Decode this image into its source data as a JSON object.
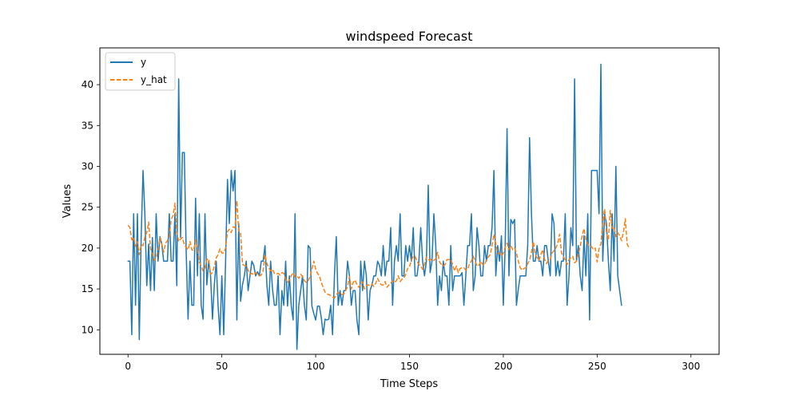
{
  "chart_data": {
    "type": "line",
    "title": "windspeed Forecast",
    "xlabel": "Time Steps",
    "ylabel": "Values",
    "xlim": [
      -15,
      315
    ],
    "ylim": [
      7.0,
      44.5
    ],
    "xticks": [
      0,
      50,
      100,
      150,
      200,
      250,
      300
    ],
    "yticks": [
      10,
      15,
      20,
      25,
      30,
      35,
      40
    ],
    "legend_position": "top-left",
    "grid": false,
    "series": [
      {
        "name": "y",
        "color": "#1f77b4",
        "style": "solid",
        "x_start": 0,
        "x_step": 1,
        "values": [
          18.4,
          18.4,
          9.4,
          24.2,
          13.0,
          24.2,
          8.8,
          21.3,
          29.5,
          24.0,
          15.4,
          20.5,
          14.8,
          21.3,
          14.8,
          24.2,
          18.4,
          21.4,
          20.5,
          18.4,
          18.4,
          18.4,
          24.2,
          18.4,
          18.4,
          24.2,
          15.4,
          40.7,
          21.3,
          31.7,
          31.7,
          19.5,
          11.3,
          18.4,
          13.0,
          13.0,
          26.1,
          16.6,
          24.2,
          13.0,
          11.3,
          24.2,
          15.5,
          18.4,
          16.6,
          11.3,
          15.5,
          18.4,
          12.9,
          9.4,
          16.6,
          9.4,
          18.4,
          28.4,
          23.0,
          29.5,
          27.0,
          29.5,
          11.2,
          23.0,
          13.5,
          15.5,
          16.6,
          18.4,
          14.8,
          16.6,
          18.4,
          17.9,
          16.6,
          17.1,
          16.6,
          18.4,
          18.4,
          20.3,
          15.5,
          13.0,
          18.4,
          15.0,
          13.0,
          13.0,
          16.6,
          9.4,
          14.8,
          13.0,
          18.4,
          12.9,
          16.6,
          12.9,
          11.2,
          24.2,
          7.6,
          13.0,
          14.8,
          16.6,
          13.0,
          11.2,
          20.3,
          20.0,
          12.9,
          12.0,
          11.2,
          12.9,
          12.9,
          11.5,
          9.4,
          11.3,
          11.2,
          11.3,
          13.0,
          9.4,
          16.6,
          21.4,
          13.0,
          14.8,
          13.0,
          14.8,
          14.8,
          18.4,
          16.6,
          13.0,
          14.8,
          14.8,
          11.2,
          9.4,
          18.4,
          14.8,
          18.4,
          16.6,
          11.2,
          14.8,
          15.5,
          16.6,
          16.6,
          18.4,
          17.9,
          16.6,
          20.3,
          16.6,
          18.4,
          18.4,
          22.5,
          13.0,
          18.4,
          20.3,
          18.4,
          24.2,
          16.6,
          16.6,
          20.3,
          18.4,
          20.3,
          18.4,
          22.5,
          16.6,
          16.6,
          18.4,
          22.5,
          18.4,
          16.6,
          18.4,
          27.7,
          17.0,
          18.4,
          24.2,
          20.3,
          13.0,
          16.6,
          14.8,
          18.4,
          16.6,
          16.6,
          13.0,
          20.3,
          14.8,
          16.6,
          16.6,
          16.6,
          16.6,
          17.0,
          13.0,
          16.6,
          20.3,
          20.3,
          24.2,
          14.8,
          16.6,
          22.5,
          20.3,
          16.6,
          16.6,
          20.3,
          18.4,
          20.3,
          20.3,
          22.5,
          29.5,
          16.6,
          20.3,
          18.4,
          21.5,
          13.0,
          20.3,
          34.6,
          16.6,
          23.5,
          23.0,
          23.5,
          13.0,
          15.0,
          16.6,
          16.6,
          16.6,
          16.6,
          20.3,
          33.5,
          24.2,
          18.4,
          18.4,
          20.3,
          18.4,
          18.4,
          16.6,
          20.3,
          20.3,
          18.4,
          16.6,
          24.2,
          23.0,
          16.6,
          18.4,
          16.6,
          18.4,
          18.4,
          24.2,
          13.0,
          16.6,
          22.5,
          20.3,
          40.7,
          18.4,
          20.3,
          16.6,
          14.8,
          21.5,
          16.6,
          24.2,
          11.2,
          29.5,
          29.5,
          29.5,
          29.5,
          24.2,
          42.5,
          18.4,
          24.2,
          23.0,
          18.4,
          14.8,
          24.2,
          18.4,
          30.0,
          16.6,
          14.8,
          13.0
        ]
      },
      {
        "name": "y_hat",
        "color": "#ff7f0e",
        "style": "dashed",
        "x_start": 0,
        "x_step": 1,
        "values": [
          22.8,
          22.5,
          21.0,
          21.3,
          20.2,
          20.8,
          19.2,
          20.4,
          20.3,
          21.4,
          21.9,
          23.2,
          19.9,
          19.4,
          18.5,
          18.8,
          19.8,
          21.3,
          20.5,
          19.5,
          20.6,
          20.9,
          21.5,
          23.5,
          24.0,
          25.5,
          22.0,
          20.8,
          21.1,
          21.3,
          20.4,
          20.1,
          19.8,
          20.8,
          19.8,
          19.7,
          21.0,
          19.9,
          18.3,
          17.8,
          17.2,
          17.6,
          18.6,
          18.7,
          16.8,
          17.0,
          17.8,
          18.8,
          19.2,
          19.9,
          19.4,
          19.4,
          20.0,
          22.0,
          22.3,
          21.9,
          22.6,
          22.5,
          25.8,
          22.0,
          21.8,
          18.0,
          17.9,
          17.8,
          17.3,
          16.8,
          16.9,
          16.7,
          17.0,
          16.8,
          16.6,
          16.7,
          17.2,
          19.2,
          18.1,
          17.6,
          17.2,
          17.4,
          16.9,
          16.8,
          16.9,
          16.7,
          17.0,
          16.9,
          16.2,
          15.8,
          16.1,
          16.6,
          17.0,
          16.5,
          16.6,
          16.3,
          16.8,
          16.5,
          16.0,
          15.8,
          16.0,
          16.5,
          17.4,
          18.4,
          17.4,
          16.9,
          16.6,
          15.8,
          15.2,
          14.6,
          14.4,
          14.3,
          14.2,
          14.0,
          13.9,
          14.3,
          14.6,
          14.4,
          14.3,
          14.4,
          14.8,
          15.3,
          16.5,
          15.0,
          15.8,
          16.1,
          15.5,
          15.2,
          15.6,
          15.9,
          15.0,
          15.4,
          15.5,
          15.4,
          15.6,
          15.3,
          15.7,
          16.3,
          15.8,
          15.5,
          15.5,
          15.9,
          15.2,
          15.5,
          15.7,
          16.0,
          15.8,
          16.0,
          16.6,
          15.9,
          16.2,
          16.3,
          16.8,
          17.5,
          17.7,
          18.5,
          19.0,
          19.0,
          18.4,
          18.0,
          17.8,
          17.4,
          18.0,
          18.9,
          18.6,
          18.5,
          18.7,
          18.5,
          18.7,
          19.5,
          18.3,
          18.0,
          17.8,
          18.0,
          18.6,
          18.6,
          18.6,
          18.0,
          17.2,
          17.8,
          17.0,
          17.5,
          17.6,
          17.6,
          17.3,
          17.4,
          18.1,
          18.4,
          19.0,
          18.4,
          17.8,
          17.9,
          18.4,
          18.0,
          17.9,
          18.6,
          18.9,
          19.2,
          20.3,
          21.7,
          20.5,
          19.4,
          19.4,
          19.0,
          19.4,
          20.1,
          20.6,
          19.8,
          20.3,
          19.8,
          20.0,
          19.4,
          18.4,
          17.6,
          17.3,
          17.5,
          17.6,
          18.1,
          18.5,
          19.5,
          20.8,
          19.2,
          18.8,
          18.5,
          19.2,
          19.8,
          18.6,
          18.1,
          18.5,
          18.6,
          19.4,
          19.7,
          20.0,
          20.6,
          21.7,
          19.4,
          19.0,
          18.5,
          18.0,
          18.6,
          18.8,
          19.0,
          18.2,
          18.4,
          19.3,
          20.2,
          21.5,
          22.4,
          21.0,
          20.5,
          20.2,
          20.2,
          19.8,
          20.0,
          18.3,
          19.9,
          20.5,
          23.3,
          24.8,
          21.8,
          21.0,
          24.6,
          22.4,
          22.6,
          21.4,
          21.9,
          21.5,
          20.9,
          21.9,
          23.6,
          20.5,
          20.0
        ]
      }
    ]
  }
}
